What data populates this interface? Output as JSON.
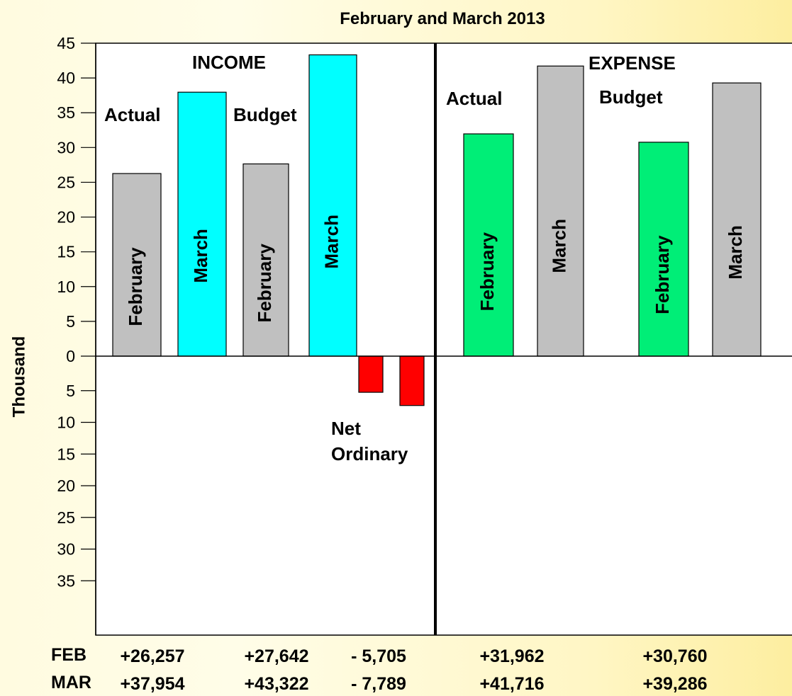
{
  "chart_data": {
    "type": "bar",
    "title": "February and March 2013",
    "ylabel": "Thousand",
    "ylim": [
      -37,
      45
    ],
    "positive_ticks": [
      "45",
      "40",
      "35",
      "30",
      "25",
      "20",
      "15",
      "10",
      "5",
      "0"
    ],
    "negative_ticks": [
      "5",
      "10",
      "15",
      "20",
      "25",
      "30",
      "35"
    ],
    "group_labels": {
      "income": "INCOME",
      "expense": "EXPENSE",
      "actual_left": "Actual",
      "budget_left": "Budget",
      "actual_right": "Actual",
      "budget_right": "Budget",
      "net": "Net",
      "ordinary": "Ordinary"
    },
    "bars": [
      {
        "label": "February",
        "value": 26.257,
        "color": "#c0c0c0"
      },
      {
        "label": "March",
        "value": 37.954,
        "color": "#00ffff"
      },
      {
        "label": "February",
        "value": 27.642,
        "color": "#c0c0c0"
      },
      {
        "label": "March",
        "value": 43.322,
        "color": "#00ffff"
      },
      {
        "label": "",
        "value": -5.705,
        "color": "#ff0000"
      },
      {
        "label": "",
        "value": -7.789,
        "color": "#ff0000"
      },
      {
        "label": "February",
        "value": 31.962,
        "color": "#00ee77"
      },
      {
        "label": "March",
        "value": 41.716,
        "color": "#c0c0c0"
      },
      {
        "label": "February",
        "value": 30.76,
        "color": "#00ee77"
      },
      {
        "label": "March",
        "value": 39.286,
        "color": "#c0c0c0"
      }
    ],
    "footer": {
      "row_labels": [
        "FEB",
        "MAR"
      ],
      "feb": [
        "+26,257",
        "+27,642",
        "- 5,705",
        "+31,962",
        "+30,760"
      ],
      "mar": [
        "+37,954",
        "+43,322",
        "- 7,789",
        "+41,716",
        "+39,286"
      ]
    },
    "grid": false,
    "legend": "none"
  }
}
